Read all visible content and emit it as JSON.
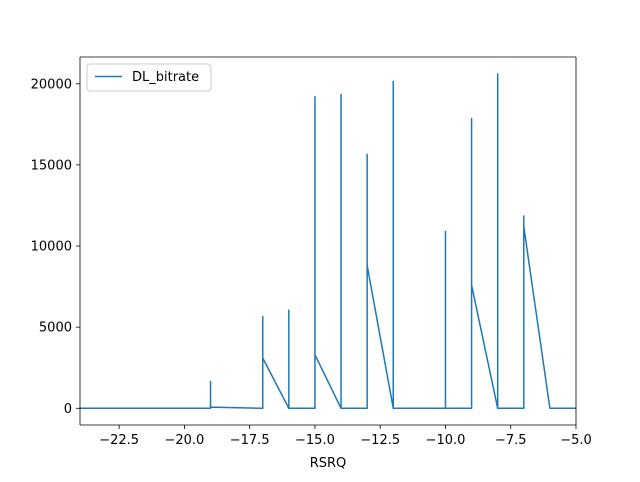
{
  "chart_data": {
    "type": "line",
    "title": "",
    "xlabel": "RSRQ",
    "ylabel": "",
    "xlim": [
      -24,
      -5
    ],
    "ylim": [
      -1030,
      21650
    ],
    "grid": false,
    "legend_position": "top-left",
    "x_ticks": [
      -22.5,
      -20.0,
      -17.5,
      -15.0,
      -12.5,
      -10.0,
      -7.5,
      -5.0
    ],
    "x_tick_labels": [
      "−22.5",
      "−20.0",
      "−17.5",
      "−15.0",
      "−12.5",
      "−10.0",
      "−7.5",
      "−5.0"
    ],
    "y_ticks": [
      0,
      5000,
      10000,
      15000,
      20000
    ],
    "y_tick_labels": [
      "0",
      "5000",
      "10000",
      "15000",
      "20000"
    ],
    "series": [
      {
        "name": "DL_bitrate",
        "color": "#1f77b4",
        "x": [
          -24,
          -19,
          -19,
          -19,
          -19,
          -19,
          -19,
          -19,
          -17,
          -17,
          -17,
          -17,
          -17,
          -16,
          -16,
          -16,
          -16,
          -15,
          -15,
          -15,
          -15,
          -14,
          -14,
          -14,
          -13,
          -13,
          -13,
          -13,
          -12,
          -12,
          -12,
          -12,
          -12,
          -10,
          -10,
          -10,
          -10,
          -10,
          -9,
          -9,
          -9,
          -9,
          -8,
          -8,
          -8,
          -8,
          -7,
          -7,
          -7,
          -7,
          -6,
          -5
        ],
        "y": [
          0,
          0,
          1650,
          0,
          1400,
          0,
          1000,
          70,
          0,
          5650,
          0,
          5200,
          3100,
          0,
          6050,
          0,
          0,
          0,
          19200,
          0,
          3300,
          0,
          19350,
          0,
          0,
          15650,
          0,
          8800,
          0,
          20150,
          0,
          19900,
          0,
          0,
          10900,
          0,
          10600,
          0,
          0,
          17850,
          0,
          7600,
          0,
          20600,
          0,
          0,
          0,
          11850,
          0,
          11200,
          0,
          0
        ]
      }
    ]
  }
}
